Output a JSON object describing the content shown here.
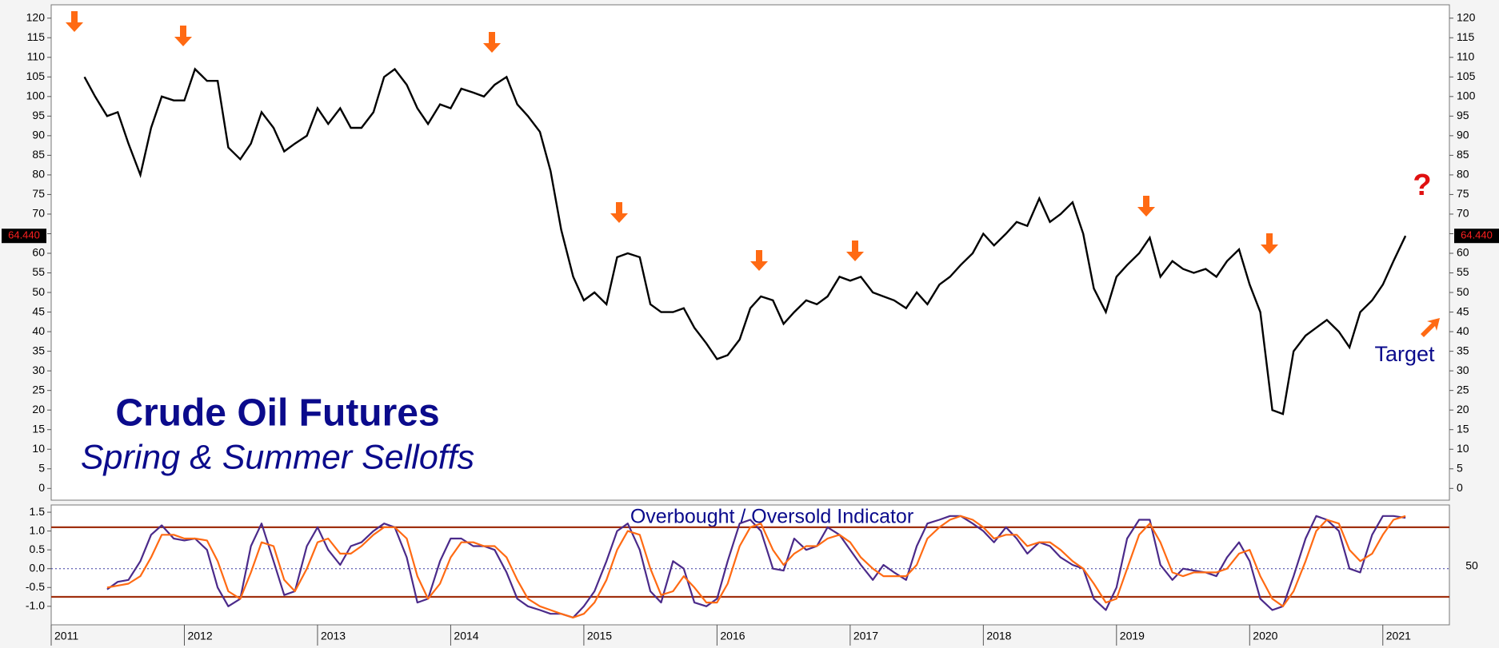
{
  "chart_data": [
    {
      "type": "line",
      "title": "Crude Oil Futures",
      "subtitle": "Spring & Summer Selloffs",
      "annotations": [
        "Target",
        "?"
      ],
      "last_price": {
        "value": 64.44,
        "label": "64.440"
      },
      "color": "#000000",
      "xlim": [
        2011,
        2021.5
      ],
      "xticks": [
        2011,
        2012,
        2013,
        2014,
        2015,
        2016,
        2017,
        2018,
        2019,
        2020,
        2021
      ],
      "ylim": [
        -3,
        123
      ],
      "yticks": [
        0,
        5,
        10,
        15,
        20,
        25,
        30,
        35,
        40,
        45,
        50,
        55,
        60,
        65,
        70,
        75,
        80,
        85,
        90,
        95,
        100,
        105,
        110,
        115,
        120
      ],
      "x": [
        2011.25,
        2011.33,
        2011.42,
        2011.5,
        2011.58,
        2011.67,
        2011.75,
        2011.83,
        2011.92,
        2012.0,
        2012.08,
        2012.17,
        2012.25,
        2012.33,
        2012.42,
        2012.5,
        2012.58,
        2012.67,
        2012.75,
        2012.83,
        2012.92,
        2013.0,
        2013.08,
        2013.17,
        2013.25,
        2013.33,
        2013.42,
        2013.5,
        2013.58,
        2013.67,
        2013.75,
        2013.83,
        2013.92,
        2014.0,
        2014.08,
        2014.17,
        2014.25,
        2014.33,
        2014.42,
        2014.5,
        2014.58,
        2014.67,
        2014.75,
        2014.83,
        2014.92,
        2015.0,
        2015.08,
        2015.17,
        2015.25,
        2015.33,
        2015.42,
        2015.5,
        2015.58,
        2015.67,
        2015.75,
        2015.83,
        2015.92,
        2016.0,
        2016.08,
        2016.17,
        2016.25,
        2016.33,
        2016.42,
        2016.5,
        2016.58,
        2016.67,
        2016.75,
        2016.83,
        2016.92,
        2017.0,
        2017.08,
        2017.17,
        2017.25,
        2017.33,
        2017.42,
        2017.5,
        2017.58,
        2017.67,
        2017.75,
        2017.83,
        2017.92,
        2018.0,
        2018.08,
        2018.17,
        2018.25,
        2018.33,
        2018.42,
        2018.5,
        2018.58,
        2018.67,
        2018.75,
        2018.83,
        2018.92,
        2019.0,
        2019.08,
        2019.17,
        2019.25,
        2019.33,
        2019.42,
        2019.5,
        2019.58,
        2019.67,
        2019.75,
        2019.83,
        2019.92,
        2020.0,
        2020.08,
        2020.17,
        2020.25,
        2020.33,
        2020.42,
        2020.5,
        2020.58,
        2020.67,
        2020.75,
        2020.83,
        2020.92,
        2021.0,
        2021.08,
        2021.17
      ],
      "values": [
        105,
        100,
        95,
        96,
        88,
        80,
        92,
        100,
        99,
        99,
        107,
        104,
        104,
        87,
        84,
        88,
        96,
        92,
        86,
        88,
        90,
        97,
        93,
        97,
        92,
        92,
        96,
        105,
        107,
        103,
        97,
        93,
        98,
        97,
        102,
        101,
        100,
        103,
        105,
        98,
        95,
        91,
        81,
        66,
        54,
        48,
        50,
        47,
        59,
        60,
        59,
        47,
        45,
        45,
        46,
        41,
        37,
        33,
        34,
        38,
        46,
        49,
        48,
        42,
        45,
        48,
        47,
        49,
        54,
        53,
        54,
        50,
        49,
        48,
        46,
        50,
        47,
        52,
        54,
        57,
        60,
        65,
        62,
        65,
        68,
        67,
        74,
        68,
        70,
        73,
        65,
        51,
        45,
        54,
        57,
        60,
        64,
        54,
        58,
        56,
        55,
        56,
        54,
        58,
        61,
        52,
        45,
        20,
        19,
        35,
        39,
        41,
        43,
        40,
        36,
        45,
        48,
        52,
        58,
        64.44
      ]
    },
    {
      "type": "line",
      "title": "Overbought / Oversold Indicator",
      "right_label": "50",
      "xlim": [
        2011,
        2021.5
      ],
      "ylim": [
        -1.45,
        1.65
      ],
      "yticks": [
        {
          "value": 1.5,
          "label": "1.5"
        },
        {
          "value": 1,
          "label": "1.0"
        },
        {
          "value": 0.5,
          "label": "0.5"
        },
        {
          "value": 0,
          "label": "0.0"
        },
        {
          "value": -0.5,
          "label": "-0.5"
        },
        {
          "value": -1,
          "label": "-1.0"
        }
      ],
      "hlines": [
        {
          "value": 1.1,
          "color": "#a0300f"
        },
        {
          "value": -0.75,
          "color": "#a0300f"
        },
        {
          "value": 0,
          "color": "#3a3aa0"
        }
      ],
      "x": [
        2011.42,
        2011.5,
        2011.58,
        2011.67,
        2011.75,
        2011.83,
        2011.92,
        2012.0,
        2012.08,
        2012.17,
        2012.25,
        2012.33,
        2012.42,
        2012.5,
        2012.58,
        2012.67,
        2012.75,
        2012.83,
        2012.92,
        2013.0,
        2013.08,
        2013.17,
        2013.25,
        2013.33,
        2013.42,
        2013.5,
        2013.58,
        2013.67,
        2013.75,
        2013.83,
        2013.92,
        2014.0,
        2014.08,
        2014.17,
        2014.25,
        2014.33,
        2014.42,
        2014.5,
        2014.58,
        2014.67,
        2014.75,
        2014.83,
        2014.92,
        2015.0,
        2015.08,
        2015.17,
        2015.25,
        2015.33,
        2015.42,
        2015.5,
        2015.58,
        2015.67,
        2015.75,
        2015.83,
        2015.92,
        2016.0,
        2016.08,
        2016.17,
        2016.25,
        2016.33,
        2016.42,
        2016.5,
        2016.58,
        2016.67,
        2016.75,
        2016.83,
        2016.92,
        2017.0,
        2017.08,
        2017.17,
        2017.25,
        2017.33,
        2017.42,
        2017.5,
        2017.58,
        2017.67,
        2017.75,
        2017.83,
        2017.92,
        2018.0,
        2018.08,
        2018.17,
        2018.25,
        2018.33,
        2018.42,
        2018.5,
        2018.58,
        2018.67,
        2018.75,
        2018.83,
        2018.92,
        2019.0,
        2019.08,
        2019.17,
        2019.25,
        2019.33,
        2019.42,
        2019.5,
        2019.58,
        2019.67,
        2019.75,
        2019.83,
        2019.92,
        2020.0,
        2020.08,
        2020.17,
        2020.25,
        2020.33,
        2020.42,
        2020.5,
        2020.58,
        2020.67,
        2020.75,
        2020.83,
        2020.92,
        2021.0,
        2021.08,
        2021.17
      ],
      "series": [
        {
          "color": "#4b2a8a",
          "values": [
            -0.55,
            -0.35,
            -0.3,
            0.2,
            0.9,
            1.15,
            0.8,
            0.75,
            0.8,
            0.5,
            -0.5,
            -1.0,
            -0.8,
            0.6,
            1.2,
            0.2,
            -0.7,
            -0.6,
            0.6,
            1.1,
            0.5,
            0.1,
            0.6,
            0.7,
            1.0,
            1.2,
            1.1,
            0.3,
            -0.9,
            -0.8,
            0.2,
            0.8,
            0.8,
            0.6,
            0.6,
            0.5,
            -0.1,
            -0.8,
            -1.0,
            -1.1,
            -1.2,
            -1.2,
            -1.3,
            -1.0,
            -0.6,
            0.2,
            1.0,
            1.2,
            0.5,
            -0.6,
            -0.9,
            0.2,
            0.0,
            -0.9,
            -1.0,
            -0.8,
            0.2,
            1.2,
            1.3,
            1.0,
            0.0,
            -0.05,
            0.8,
            0.5,
            0.6,
            1.1,
            0.9,
            0.5,
            0.1,
            -0.3,
            0.1,
            -0.1,
            -0.3,
            0.6,
            1.2,
            1.3,
            1.4,
            1.4,
            1.2,
            1.0,
            0.7,
            1.1,
            0.8,
            0.4,
            0.7,
            0.6,
            0.3,
            0.1,
            0.0,
            -0.8,
            -1.1,
            -0.5,
            0.8,
            1.3,
            1.3,
            0.1,
            -0.3,
            0.0,
            -0.05,
            -0.1,
            -0.2,
            0.3,
            0.7,
            0.2,
            -0.8,
            -1.1,
            -1.0,
            -0.2,
            0.8,
            1.4,
            1.3,
            1.0,
            0.0,
            -0.1,
            0.9,
            1.4,
            1.4,
            1.35
          ]
        },
        {
          "color": "#ff6a13",
          "values": [
            -0.5,
            -0.45,
            -0.4,
            -0.2,
            0.3,
            0.9,
            0.9,
            0.8,
            0.8,
            0.75,
            0.2,
            -0.6,
            -0.8,
            -0.1,
            0.7,
            0.6,
            -0.3,
            -0.6,
            0.0,
            0.7,
            0.8,
            0.4,
            0.4,
            0.6,
            0.9,
            1.1,
            1.1,
            0.8,
            -0.2,
            -0.8,
            -0.4,
            0.3,
            0.7,
            0.7,
            0.6,
            0.6,
            0.3,
            -0.3,
            -0.8,
            -1.0,
            -1.1,
            -1.2,
            -1.3,
            -1.2,
            -0.9,
            -0.3,
            0.5,
            1.0,
            0.9,
            0.0,
            -0.7,
            -0.6,
            -0.2,
            -0.5,
            -0.9,
            -0.9,
            -0.4,
            0.6,
            1.1,
            1.2,
            0.5,
            0.1,
            0.4,
            0.6,
            0.6,
            0.8,
            0.9,
            0.7,
            0.3,
            0.0,
            -0.2,
            -0.2,
            -0.2,
            0.1,
            0.8,
            1.1,
            1.3,
            1.4,
            1.3,
            1.1,
            0.8,
            0.9,
            0.9,
            0.6,
            0.7,
            0.7,
            0.5,
            0.2,
            0.0,
            -0.4,
            -0.9,
            -0.8,
            0.0,
            0.9,
            1.2,
            0.7,
            -0.1,
            -0.2,
            -0.1,
            -0.1,
            -0.1,
            0.0,
            0.4,
            0.5,
            -0.2,
            -0.8,
            -1.0,
            -0.6,
            0.2,
            1.0,
            1.3,
            1.2,
            0.5,
            0.2,
            0.4,
            0.9,
            1.3,
            1.4
          ]
        }
      ]
    }
  ]
}
